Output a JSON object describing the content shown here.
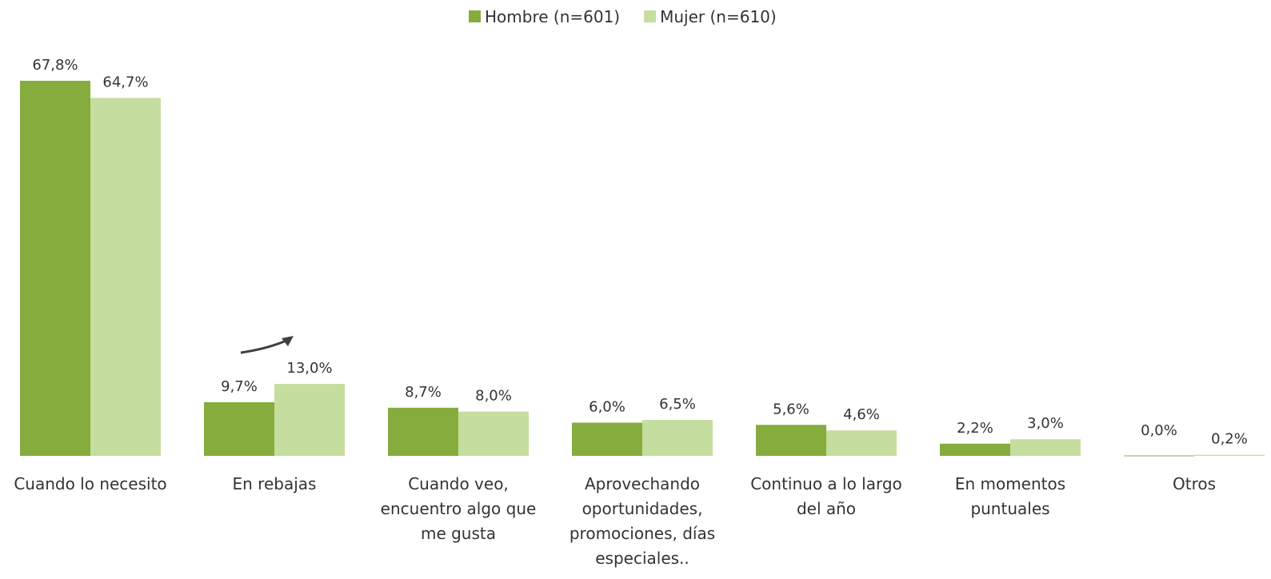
{
  "chart_data": {
    "type": "bar",
    "categories": [
      "Cuando lo necesito",
      "En rebajas",
      "Cuando veo, encuentro algo que me gusta",
      "Aprovechando oportunidades, promociones, días especiales..",
      "Continuo a lo largo del año",
      "En momentos puntuales",
      "Otros"
    ],
    "series": [
      {
        "name": "Hombre (n=601)",
        "color": "#86ac3e",
        "values": [
          67.8,
          9.7,
          8.7,
          6.0,
          5.6,
          2.2,
          0.0
        ],
        "value_labels": [
          "67,8%",
          "9,7%",
          "8,7%",
          "6,0%",
          "5,6%",
          "2,2%",
          "0,0%"
        ]
      },
      {
        "name": "Mujer (n=610)",
        "color": "#c5dea0",
        "values": [
          64.7,
          13.0,
          8.0,
          6.5,
          4.6,
          3.0,
          0.2
        ],
        "value_labels": [
          "64,7%",
          "13,0%",
          "8,0%",
          "6,5%",
          "4,6%",
          "3,0%",
          "0,2%"
        ]
      }
    ],
    "legend": "top"
  }
}
